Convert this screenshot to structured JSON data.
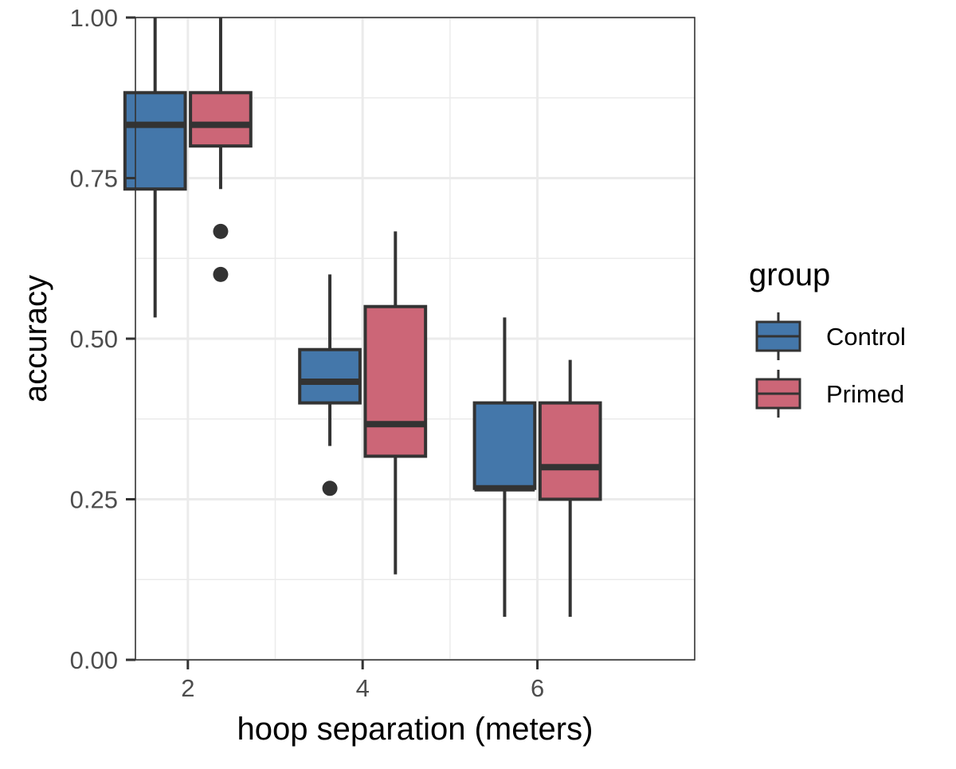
{
  "chart_data": {
    "type": "boxplot",
    "xlabel": "hoop separation (meters)",
    "ylabel": "accuracy",
    "x_ticks": [
      "2",
      "4",
      "6"
    ],
    "y_ticks": [
      "0.00",
      "0.25",
      "0.50",
      "0.75",
      "1.00"
    ],
    "ylim": [
      0,
      1
    ],
    "x_range": [
      1.4,
      7.8
    ],
    "grid": true,
    "legend": {
      "title": "group",
      "placement": "right",
      "entries": [
        {
          "name": "Control",
          "color": "#4477AA"
        },
        {
          "name": "Primed",
          "color": "#CC6677"
        }
      ]
    },
    "series": [
      {
        "name": "Control",
        "color": "#4477AA",
        "boxes": [
          {
            "x": 2,
            "lower_whisker": 0.533,
            "q1": 0.733,
            "median": 0.833,
            "q3": 0.883,
            "upper_whisker": 1.0,
            "outliers": []
          },
          {
            "x": 4,
            "lower_whisker": 0.333,
            "q1": 0.4,
            "median": 0.433,
            "q3": 0.483,
            "upper_whisker": 0.6,
            "outliers": [
              0.267
            ]
          },
          {
            "x": 6,
            "lower_whisker": 0.067,
            "q1": 0.267,
            "median": 0.267,
            "q3": 0.4,
            "upper_whisker": 0.533,
            "outliers": []
          }
        ]
      },
      {
        "name": "Primed",
        "color": "#CC6677",
        "boxes": [
          {
            "x": 2,
            "lower_whisker": 0.733,
            "q1": 0.8,
            "median": 0.833,
            "q3": 0.883,
            "upper_whisker": 1.0,
            "outliers": [
              0.667,
              0.6
            ]
          },
          {
            "x": 4,
            "lower_whisker": 0.133,
            "q1": 0.317,
            "median": 0.367,
            "q3": 0.55,
            "upper_whisker": 0.667,
            "outliers": []
          },
          {
            "x": 6,
            "lower_whisker": 0.067,
            "q1": 0.25,
            "median": 0.3,
            "q3": 0.4,
            "upper_whisker": 0.467,
            "outliers": []
          }
        ]
      }
    ]
  }
}
